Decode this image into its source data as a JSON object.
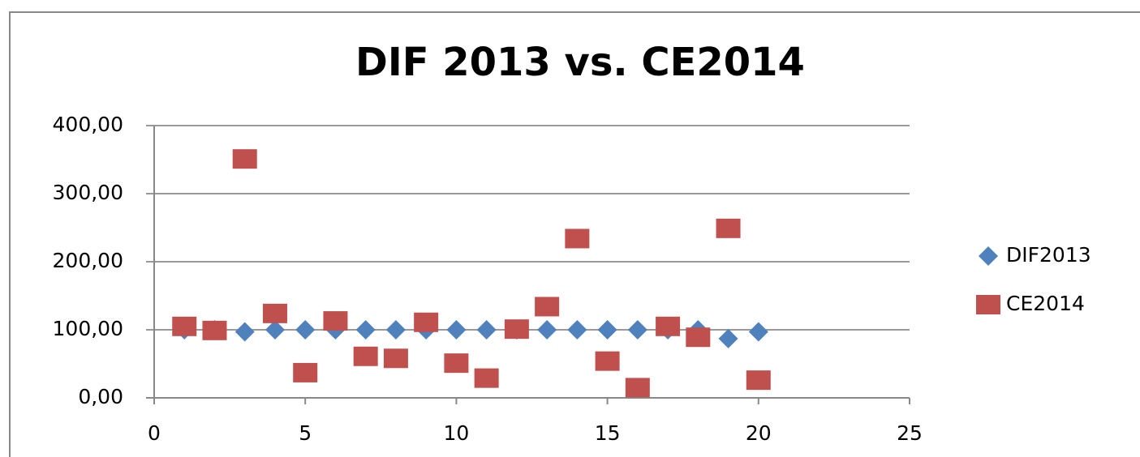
{
  "chart_data": {
    "type": "scatter",
    "title": "DIF 2013 vs. CE2014",
    "x": [
      1,
      2,
      3,
      4,
      5,
      6,
      7,
      8,
      9,
      10,
      11,
      12,
      13,
      14,
      15,
      16,
      17,
      18,
      19,
      20
    ],
    "series": [
      {
        "name": "DIF2013",
        "color": "#4f81bd",
        "marker": "diamond",
        "values": [
          100,
          100,
          97,
          100,
          100,
          100,
          100,
          100,
          100,
          100,
          100,
          100,
          100,
          100,
          100,
          100,
          100,
          100,
          87,
          97
        ]
      },
      {
        "name": "CE2014",
        "color": "#c0504d",
        "marker": "square",
        "values": [
          105,
          99,
          351,
          124,
          37,
          113,
          61,
          58,
          111,
          51,
          29,
          101,
          134,
          234,
          54,
          15,
          105,
          89,
          249,
          26
        ]
      }
    ],
    "xlim": [
      0,
      25
    ],
    "xticks": [
      0,
      5,
      10,
      15,
      20,
      25
    ],
    "ylim": [
      0,
      400
    ],
    "yticks": [
      {
        "value": 0,
        "label": "0,00"
      },
      {
        "value": 100,
        "label": "100,00"
      },
      {
        "value": 200,
        "label": "200,00"
      },
      {
        "value": 300,
        "label": "300,00"
      },
      {
        "value": 400,
        "label": "400,00"
      }
    ],
    "grid": true,
    "legend": "right"
  }
}
